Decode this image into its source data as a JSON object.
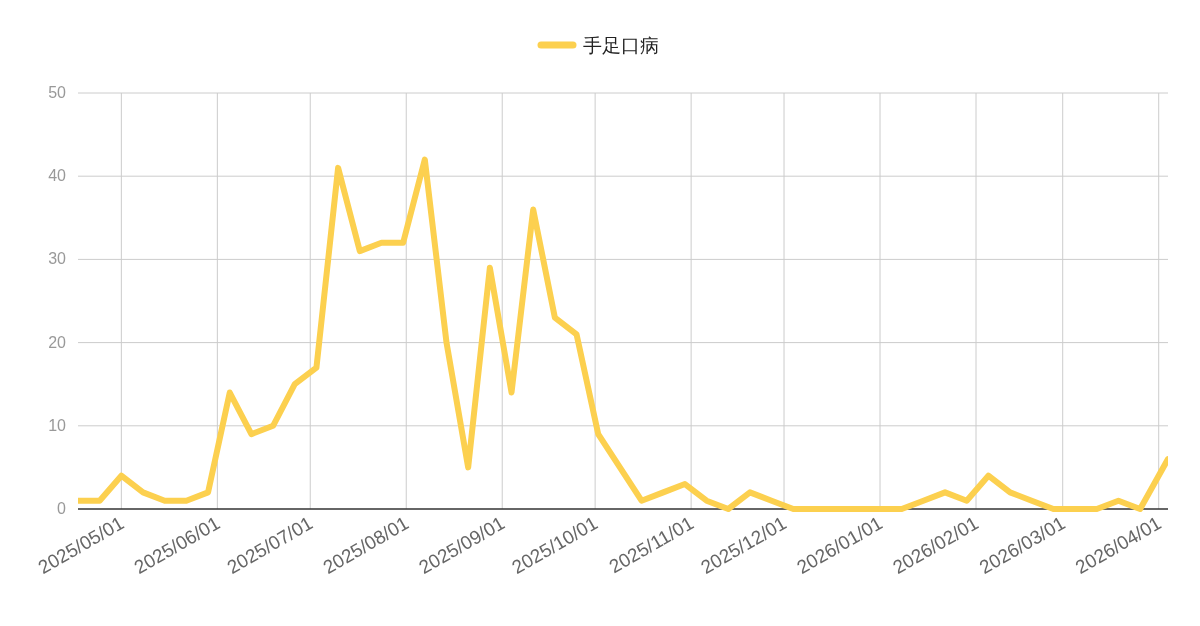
{
  "chart_data": {
    "type": "line",
    "x": [
      "2025-04-17",
      "2025-04-24",
      "2025-05-01",
      "2025-05-08",
      "2025-05-15",
      "2025-05-22",
      "2025-05-29",
      "2025-06-05",
      "2025-06-12",
      "2025-06-19",
      "2025-06-26",
      "2025-07-03",
      "2025-07-10",
      "2025-07-17",
      "2025-07-24",
      "2025-07-31",
      "2025-08-07",
      "2025-08-14",
      "2025-08-21",
      "2025-08-28",
      "2025-09-04",
      "2025-09-11",
      "2025-09-18",
      "2025-09-25",
      "2025-10-02",
      "2025-10-09",
      "2025-10-16",
      "2025-10-23",
      "2025-10-30",
      "2025-11-06",
      "2025-11-13",
      "2025-11-20",
      "2025-11-27",
      "2025-12-04",
      "2025-12-11",
      "2025-12-18",
      "2025-12-25",
      "2026-01-01",
      "2026-01-08",
      "2026-01-15",
      "2026-01-22",
      "2026-01-29",
      "2026-02-05",
      "2026-02-12",
      "2026-02-19",
      "2026-02-26",
      "2026-03-05",
      "2026-03-12",
      "2026-03-19",
      "2026-03-26",
      "2026-04-04"
    ],
    "series": [
      {
        "name": "手足口病",
        "color": "#fcd04f",
        "values": [
          1,
          1,
          4,
          2,
          1,
          1,
          2,
          14,
          9,
          10,
          15,
          17,
          41,
          31,
          32,
          32,
          42,
          20,
          5,
          29,
          14,
          36,
          23,
          21,
          9,
          5,
          1,
          2,
          3,
          1,
          0,
          2,
          1,
          0,
          0,
          0,
          0,
          0,
          0,
          1,
          2,
          1,
          4,
          2,
          1,
          0,
          0,
          0,
          1,
          0,
          6
        ]
      }
    ],
    "xlim": [
      "2025-04-17",
      "2026-04-04"
    ],
    "xticks": [
      {
        "value": "2025-05-01",
        "label": "2025/05/01"
      },
      {
        "value": "2025-06-01",
        "label": "2025/06/01"
      },
      {
        "value": "2025-07-01",
        "label": "2025/07/01"
      },
      {
        "value": "2025-08-01",
        "label": "2025/08/01"
      },
      {
        "value": "2025-09-01",
        "label": "2025/09/01"
      },
      {
        "value": "2025-10-01",
        "label": "2025/10/01"
      },
      {
        "value": "2025-11-01",
        "label": "2025/11/01"
      },
      {
        "value": "2025-12-01",
        "label": "2025/12/01"
      },
      {
        "value": "2026-01-01",
        "label": "2026/01/01"
      },
      {
        "value": "2026-02-01",
        "label": "2026/02/01"
      },
      {
        "value": "2026-03-01",
        "label": "2026/03/01"
      },
      {
        "value": "2026-04-01",
        "label": "2026/04/01"
      }
    ],
    "ylim": [
      0,
      50
    ],
    "yticks": [
      0,
      10,
      20,
      30,
      40,
      50
    ],
    "grid": true,
    "legend": "top",
    "marker": "none",
    "line_style": "solid"
  }
}
